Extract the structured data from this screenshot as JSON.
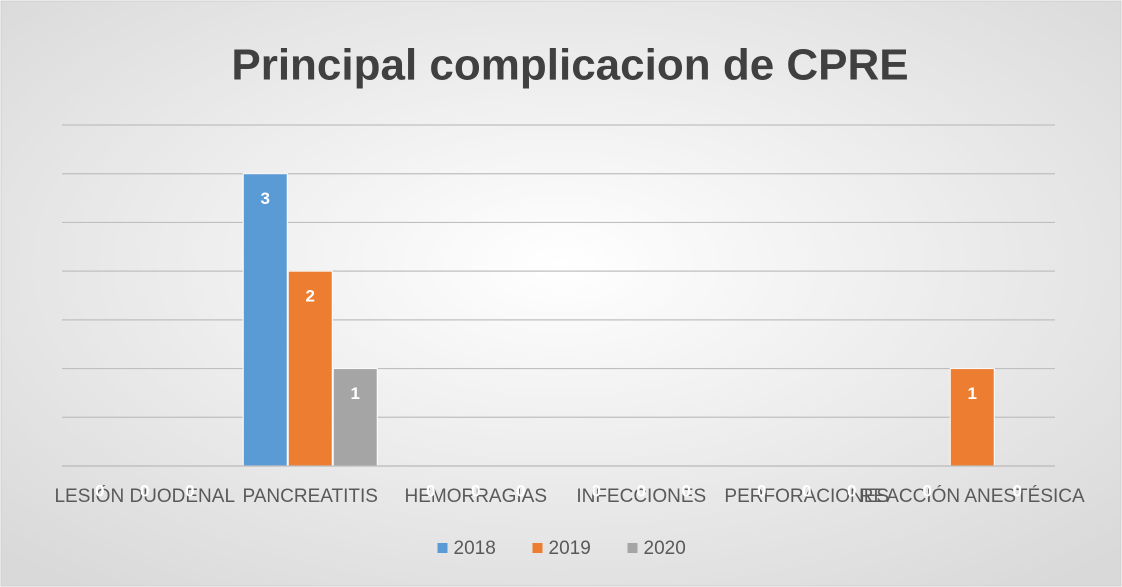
{
  "chart_data": {
    "type": "bar",
    "title": "Principal complicacion de CPRE",
    "categories": [
      "LESIÓN DUODENAL",
      "PANCREATITIS",
      "HEMORRAGIAS",
      "INFECCIONES",
      "PERFORACIONES",
      "REACCIÓN ANESTÉSICA"
    ],
    "series": [
      {
        "name": "2018",
        "color": "#5b9bd5",
        "values": [
          0,
          3,
          0,
          0,
          0,
          0
        ]
      },
      {
        "name": "2019",
        "color": "#ed7d31",
        "values": [
          0,
          2,
          0,
          0,
          0,
          1
        ]
      },
      {
        "name": "2020",
        "color": "#a5a5a5",
        "values": [
          0,
          1,
          0,
          0,
          0,
          0
        ]
      }
    ],
    "ylim": [
      0,
      3.5
    ],
    "yticks": [
      0,
      0.5,
      1,
      1.5,
      2,
      2.5,
      3,
      3.5
    ],
    "grid": true,
    "legend": "bottom"
  }
}
